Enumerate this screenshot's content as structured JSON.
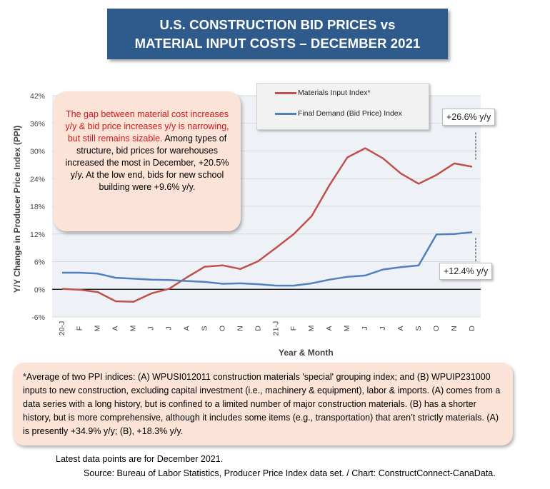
{
  "title": {
    "line1": "U.S. CONSTRUCTION BID PRICES vs",
    "line2": "MATERIAL INPUT COSTS – DECEMBER 2021"
  },
  "callout": {
    "highlight": "The gap between material cost increases y/y & bid price increases y/y is narrowing, but still remains sizable.",
    "body": " Among types of structure, bid prices for warehouses increased the most in December, +20.5% y/y. At the low end, bids for new school building were +9.6% y/y."
  },
  "annotations": {
    "materials_end": "+26.6% y/y",
    "final_demand_end": "+12.4% y/y"
  },
  "note": "*Average of two PPI indices: (A) WPUSI012011 construction materials 'special' grouping index; and (B) WPUIP231000 inputs to new construction, excluding capital investment (i.e., machinery & equipment), labor & imports. (A) comes from a data series with a long history, but is confined to a limited number of major construction materials. (B) has a shorter history, but is more comprehensive, although it includes some items (e.g., transportation) that aren’t strictly materials. (A) is presently +34.9% y/y; (B), +18.3% y/y.",
  "footer": {
    "latest": "Latest data points are for December 2021.",
    "source": "Source: Bureau of Labor Statistics, Producer Price Index data set. / Chart: ConstructConnect-CanaData."
  },
  "colors": {
    "materials": "#c0504d",
    "final_demand": "#4f81bd",
    "title_bg": "#2f5a8c"
  },
  "chart_data": {
    "type": "line",
    "title": "U.S. CONSTRUCTION BID PRICES vs MATERIAL INPUT COSTS – DECEMBER 2021",
    "xlabel": "Year & Month",
    "ylabel": "Y/Y Change in Producer Price Index (PPI)",
    "ylim": [
      -6,
      42
    ],
    "yticks": [
      "-6%",
      "0%",
      "6%",
      "12%",
      "18%",
      "24%",
      "30%",
      "36%",
      "42%"
    ],
    "categories": [
      "20-J",
      "F",
      "M",
      "A",
      "M",
      "J",
      "J",
      "A",
      "S",
      "O",
      "N",
      "D",
      "21-J",
      "F",
      "M",
      "A",
      "M",
      "J",
      "J",
      "A",
      "S",
      "O",
      "N",
      "D"
    ],
    "legend_position": "top-right",
    "series": [
      {
        "name": "Materials Input Index*",
        "values": [
          0.1,
          -0.1,
          -0.6,
          -2.6,
          -2.7,
          -0.9,
          0.1,
          2.6,
          4.9,
          5.2,
          4.4,
          6.1,
          9.0,
          12.0,
          15.9,
          22.6,
          28.6,
          30.6,
          28.4,
          25.1,
          22.9,
          24.8,
          27.3,
          26.6
        ]
      },
      {
        "name": "Final Demand (Bid Price) Index",
        "values": [
          3.6,
          3.6,
          3.4,
          2.5,
          2.3,
          2.1,
          2.0,
          1.8,
          1.6,
          1.2,
          1.3,
          1.1,
          0.8,
          0.8,
          1.3,
          2.1,
          2.7,
          3.0,
          4.3,
          4.8,
          5.2,
          11.9,
          12.0,
          12.4
        ]
      }
    ]
  }
}
